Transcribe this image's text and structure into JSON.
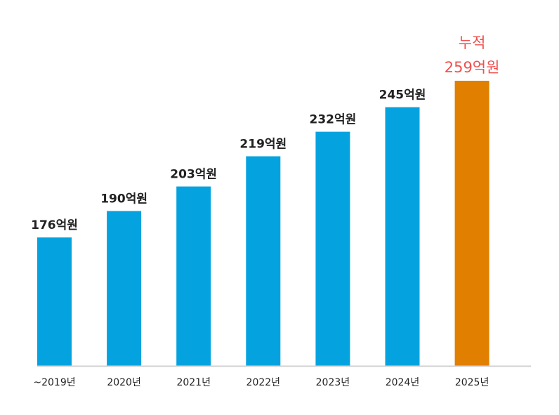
{
  "chart_data": {
    "type": "bar",
    "categories": [
      "~2019년",
      "2020년",
      "2021년",
      "2022년",
      "2023년",
      "2024년",
      "2025년"
    ],
    "values": [
      176,
      190,
      203,
      219,
      232,
      245,
      259
    ],
    "data_labels": [
      "176억원",
      "190억원",
      "203억원",
      "219억원",
      "232억원",
      "245억원",
      "259억원"
    ],
    "highlight_prefix": "누적",
    "ylim": [
      108,
      259
    ],
    "grid": false,
    "colors": {
      "bar": "#04a3df",
      "highlight_bar": "#e07f00",
      "highlight_text": "#f0504f",
      "label": "#222222",
      "axis": "#d0d0d0"
    }
  }
}
